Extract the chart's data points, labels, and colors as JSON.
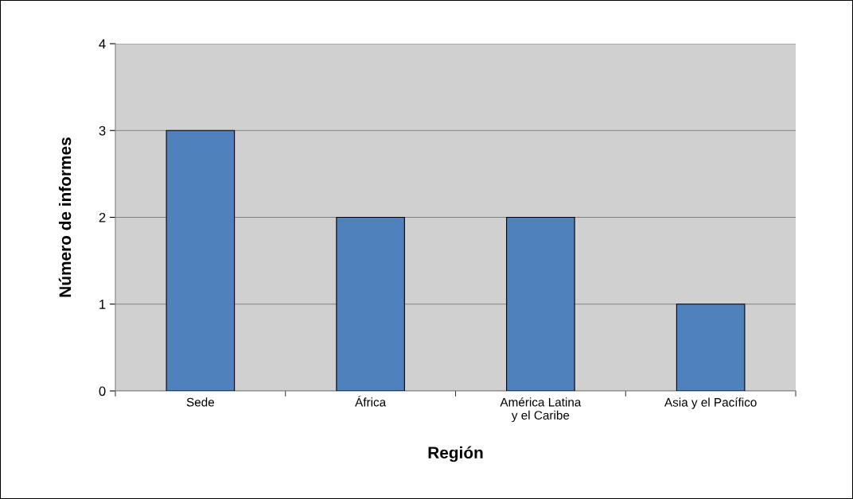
{
  "chart_data": {
    "type": "bar",
    "xlabel": "Región",
    "ylabel": "Número de informes",
    "categories": [
      "Sede",
      "África",
      "América Latina\ny el Caribe",
      "Asia y el Pacífico"
    ],
    "values": [
      3,
      2,
      2,
      1
    ],
    "color": "#4f81bd",
    "ylim": [
      0,
      4
    ],
    "yticks": [
      0,
      1,
      2,
      3,
      4
    ],
    "grid": "y"
  }
}
